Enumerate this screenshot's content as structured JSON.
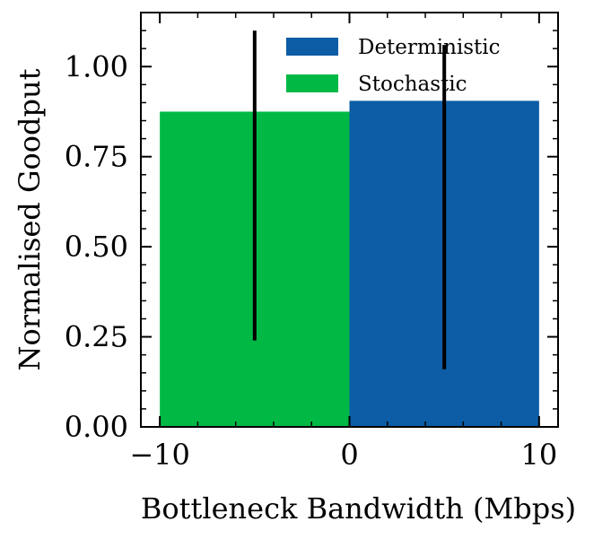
{
  "chart_data": {
    "type": "bar",
    "xlabel": "Bottleneck Bandwidth (Mbps)",
    "ylabel": "Normalised Goodput",
    "xlim": [
      -11,
      11
    ],
    "ylim": [
      0,
      1.15
    ],
    "x_ticks": [
      -10,
      0,
      10
    ],
    "x_tick_labels": [
      "−10",
      "0",
      "10"
    ],
    "y_ticks": [
      0.0,
      0.25,
      0.5,
      0.75,
      1.0
    ],
    "y_tick_labels": [
      "0.00",
      "0.25",
      "0.50",
      "0.75",
      "1.00"
    ],
    "grid": false,
    "legend_position": "top-right",
    "series": [
      {
        "name": "Deterministic",
        "color": "#0c5da5",
        "bars": [
          {
            "x0": 0,
            "x1": 10,
            "value": 0.905,
            "err_x": 5,
            "err_low": 0.16,
            "err_high": 1.06
          }
        ]
      },
      {
        "name": "Stochastic",
        "color": "#00b945",
        "bars": [
          {
            "x0": -10,
            "x1": 0,
            "value": 0.875,
            "err_x": -5,
            "err_low": 0.24,
            "err_high": 1.1
          }
        ]
      }
    ]
  }
}
